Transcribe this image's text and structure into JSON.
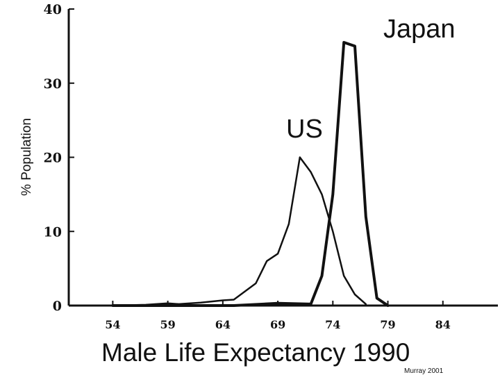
{
  "chart_data": {
    "type": "line",
    "title": "Male Life Expectancy 1990",
    "ylabel": "% Population",
    "xlabel": "",
    "credit": "Murray 2001",
    "xlim": [
      50,
      89
    ],
    "ylim": [
      0,
      40
    ],
    "x_ticks": [
      54,
      59,
      64,
      69,
      74,
      79,
      84
    ],
    "y_ticks": [
      0,
      10,
      20,
      30,
      40
    ],
    "grid": false,
    "legend": "none",
    "series": [
      {
        "name": "US",
        "x": [
          54,
          57,
          59,
          60,
          62,
          64,
          65,
          67,
          68,
          69,
          70,
          71,
          72,
          73,
          74,
          75,
          76,
          77
        ],
        "y": [
          0,
          0.1,
          0.3,
          0.2,
          0.4,
          0.7,
          0.8,
          3,
          6,
          7,
          11,
          20,
          18,
          15,
          10,
          4,
          1.5,
          0.2
        ]
      },
      {
        "name": "Japan",
        "x": [
          54,
          65,
          69,
          72,
          73,
          74,
          75,
          76,
          77,
          78,
          79
        ],
        "y": [
          0,
          0,
          0.3,
          0.2,
          4,
          15,
          35.5,
          35,
          12,
          1,
          0
        ]
      }
    ]
  }
}
